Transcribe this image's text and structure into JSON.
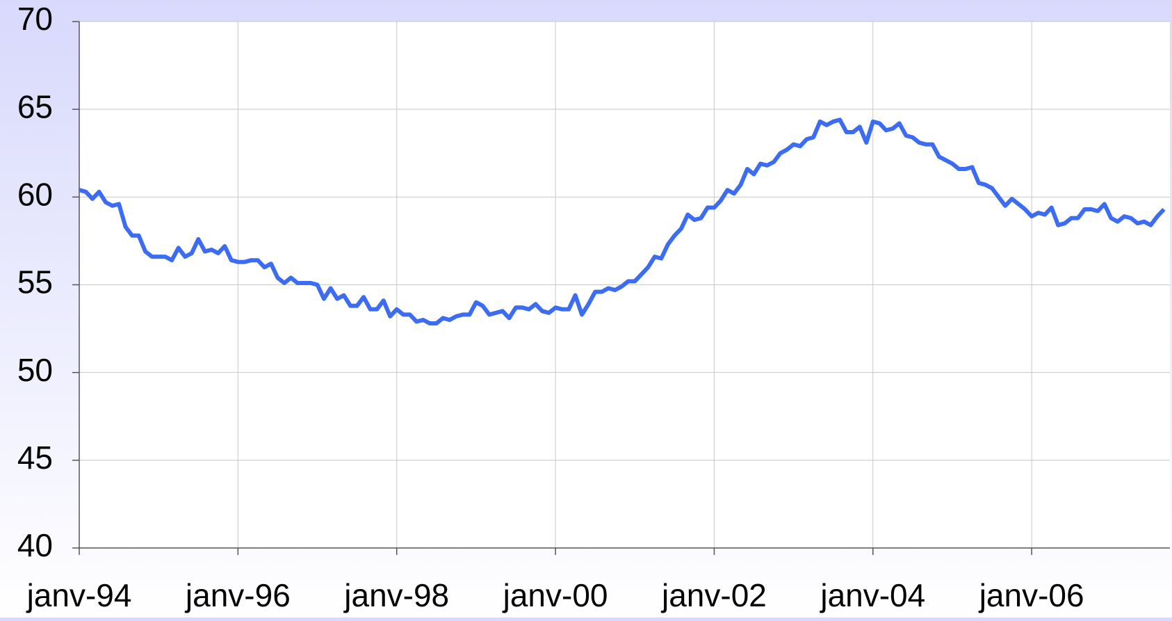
{
  "chart_data": {
    "type": "line",
    "categories": [
      "janv-94",
      null,
      null,
      null,
      null,
      null,
      null,
      null,
      null,
      null,
      null,
      null,
      null,
      null,
      null,
      null,
      null,
      null,
      null,
      null,
      null,
      null,
      null,
      null,
      "janv-96",
      null,
      null,
      null,
      null,
      null,
      null,
      null,
      null,
      null,
      null,
      null,
      null,
      null,
      null,
      null,
      null,
      null,
      null,
      null,
      null,
      null,
      null,
      null,
      "janv-98",
      null,
      null,
      null,
      null,
      null,
      null,
      null,
      null,
      null,
      null,
      null,
      null,
      null,
      null,
      null,
      null,
      null,
      null,
      null,
      null,
      null,
      null,
      null,
      "janv-00",
      null,
      null,
      null,
      null,
      null,
      null,
      null,
      null,
      null,
      null,
      null,
      null,
      null,
      null,
      null,
      null,
      null,
      null,
      null,
      null,
      null,
      null,
      null,
      "janv-02",
      null,
      null,
      null,
      null,
      null,
      null,
      null,
      null,
      null,
      null,
      null,
      null,
      null,
      null,
      null,
      null,
      null,
      null,
      null,
      null,
      null,
      null,
      null,
      "janv-04",
      null,
      null,
      null,
      null,
      null,
      null,
      null,
      null,
      null,
      null,
      null,
      null,
      null,
      null,
      null,
      null,
      null,
      null,
      null,
      null,
      null,
      null,
      null,
      "janv-06",
      null,
      null,
      null,
      null,
      null,
      null,
      null,
      null,
      null,
      null,
      null,
      null,
      null,
      null,
      null,
      null,
      null,
      null,
      null,
      null
    ],
    "series": [
      {
        "color": "#3b6cf2",
        "values": [
          60.4,
          60.3,
          59.9,
          60.3,
          59.7,
          59.5,
          59.6,
          58.3,
          57.8,
          57.8,
          56.9,
          56.6,
          56.6,
          56.6,
          56.4,
          57.1,
          56.6,
          56.8,
          57.6,
          56.9,
          57.0,
          56.8,
          57.2,
          56.4,
          56.3,
          56.3,
          56.4,
          56.4,
          56.0,
          56.2,
          55.4,
          55.1,
          55.4,
          55.1,
          55.1,
          55.1,
          55.0,
          54.2,
          54.8,
          54.2,
          54.4,
          53.8,
          53.8,
          54.3,
          53.6,
          53.6,
          54.1,
          53.2,
          53.6,
          53.3,
          53.3,
          52.9,
          53.0,
          52.8,
          52.8,
          53.1,
          53.0,
          53.2,
          53.3,
          53.3,
          54.0,
          53.8,
          53.3,
          53.4,
          53.5,
          53.1,
          53.7,
          53.7,
          53.6,
          53.9,
          53.5,
          53.4,
          53.7,
          53.6,
          53.6,
          54.4,
          53.3,
          53.9,
          54.6,
          54.6,
          54.8,
          54.7,
          54.9,
          55.2,
          55.2,
          55.6,
          56.0,
          56.6,
          56.5,
          57.3,
          57.8,
          58.2,
          59.0,
          58.7,
          58.8,
          59.4,
          59.4,
          59.8,
          60.4,
          60.2,
          60.7,
          61.6,
          61.3,
          61.9,
          61.8,
          62.0,
          62.5,
          62.7,
          63.0,
          62.9,
          63.3,
          63.4,
          64.3,
          64.1,
          64.3,
          64.4,
          63.7,
          63.7,
          64.0,
          63.1,
          64.3,
          64.2,
          63.8,
          63.9,
          64.2,
          63.5,
          63.4,
          63.1,
          63.0,
          63.0,
          62.3,
          62.1,
          61.9,
          61.6,
          61.6,
          61.7,
          60.8,
          60.7,
          60.5,
          60.0,
          59.5,
          59.9,
          59.6,
          59.3,
          58.9,
          59.1,
          59.0,
          59.4,
          58.4,
          58.5,
          58.8,
          58.8,
          59.3,
          59.3,
          59.2,
          59.6,
          58.8,
          58.6,
          58.9,
          58.8,
          58.5,
          58.6,
          58.4,
          58.9,
          59.3
        ]
      }
    ],
    "ylim": [
      40,
      70
    ],
    "yticks": [
      40,
      45,
      50,
      55,
      60,
      65,
      70
    ],
    "grid": true
  }
}
